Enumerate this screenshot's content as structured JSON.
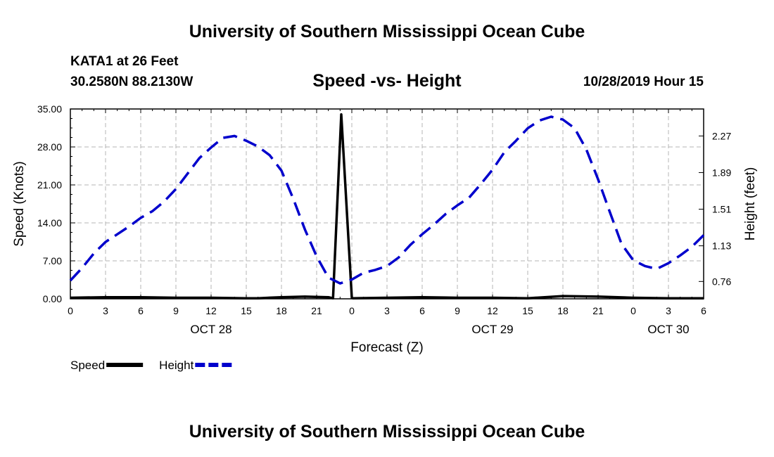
{
  "header": {
    "title_top": "University of Southern Mississippi Ocean Cube",
    "station": "KATA1 at 26 Feet",
    "coords": "30.2580N 88.2130W",
    "plot_title": "Speed -vs- Height",
    "datetime": "10/28/2019 Hour 15",
    "title_bottom": "University of Southern Mississippi Ocean Cube"
  },
  "chart_data": {
    "type": "line",
    "title": "Speed -vs- Height",
    "xlabel": "Forecast (Z)",
    "ylabel": "Speed (Knots)",
    "y2label": "Height (feet)",
    "xlim": [
      0,
      54
    ],
    "ylim": [
      0,
      35
    ],
    "y2lim": [
      0.58,
      2.55
    ],
    "x_ticks": [
      0,
      3,
      6,
      9,
      12,
      15,
      18,
      21,
      24,
      27,
      30,
      33,
      36,
      39,
      42,
      45,
      48,
      51,
      54
    ],
    "x_tick_labels": [
      "0",
      "3",
      "6",
      "9",
      "12",
      "15",
      "18",
      "21",
      "0",
      "3",
      "6",
      "9",
      "12",
      "15",
      "18",
      "21",
      "0",
      "3",
      "6"
    ],
    "date_labels": [
      {
        "x": 12,
        "label": "OCT 28"
      },
      {
        "x": 36,
        "label": "OCT 29"
      },
      {
        "x": 51,
        "label": "OCT 30"
      }
    ],
    "y_ticks": [
      0,
      7,
      14,
      21,
      28,
      35
    ],
    "y_tick_labels": [
      "0.00",
      "7.00",
      "14.00",
      "21.00",
      "28.00",
      "35.00"
    ],
    "y2_ticks": [
      0.76,
      1.13,
      1.51,
      1.89,
      2.27
    ],
    "y2_tick_labels": [
      "0.76",
      "1.13",
      "1.51",
      "1.89",
      "2.27"
    ],
    "grid": true,
    "legend_position": "bottom-left",
    "series": [
      {
        "name": "Speed",
        "axis": "left",
        "color": "#000000",
        "style": "solid",
        "x": [
          0,
          3,
          6,
          9,
          12,
          15,
          16,
          18,
          20,
          22,
          22.4,
          23.1,
          24,
          24.1,
          27,
          30,
          33,
          36,
          39,
          42,
          45,
          48,
          51,
          54
        ],
        "values": [
          0.2,
          0.3,
          0.3,
          0.2,
          0.2,
          0.1,
          0.1,
          0.3,
          0.4,
          0.3,
          0.1,
          34.0,
          0.2,
          0.1,
          0.2,
          0.3,
          0.2,
          0.2,
          0.1,
          0.5,
          0.4,
          0.2,
          0.1,
          0.1
        ]
      },
      {
        "name": "Height",
        "axis": "right",
        "color": "#0000cc",
        "style": "dashed",
        "x": [
          0,
          1,
          2,
          3,
          4,
          5,
          6,
          7,
          8,
          9,
          10,
          11,
          12,
          13,
          14,
          15,
          16,
          17,
          18,
          19,
          20,
          21,
          22,
          23,
          24,
          25,
          26,
          27,
          28,
          29,
          30,
          31,
          32,
          33,
          34,
          35,
          36,
          37,
          38,
          39,
          40,
          41,
          42,
          43,
          44,
          45,
          46,
          47,
          48,
          49,
          50,
          51,
          52,
          53,
          54
        ],
        "values": [
          0.77,
          0.9,
          1.05,
          1.17,
          1.25,
          1.33,
          1.42,
          1.49,
          1.59,
          1.72,
          1.88,
          2.04,
          2.15,
          2.25,
          2.27,
          2.22,
          2.16,
          2.07,
          1.91,
          1.62,
          1.3,
          1.02,
          0.8,
          0.74,
          0.78,
          0.85,
          0.88,
          0.92,
          1.01,
          1.14,
          1.25,
          1.35,
          1.46,
          1.55,
          1.63,
          1.77,
          1.92,
          2.1,
          2.22,
          2.35,
          2.43,
          2.47,
          2.44,
          2.35,
          2.13,
          1.82,
          1.48,
          1.15,
          0.98,
          0.92,
          0.89,
          0.95,
          1.03,
          1.12,
          1.24
        ]
      }
    ]
  }
}
